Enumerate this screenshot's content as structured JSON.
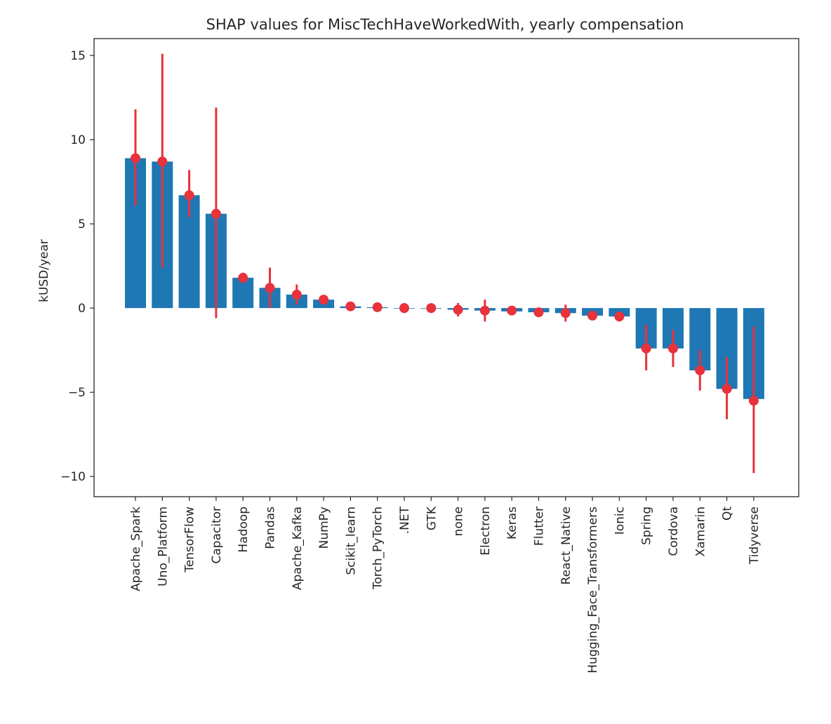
{
  "chart_data": {
    "type": "bar",
    "title": "SHAP values for MiscTechHaveWorkedWith, yearly compensation",
    "xlabel": "",
    "ylabel": "kUSD/year",
    "ylim": [
      -11.2,
      16.0
    ],
    "yticks": [
      15,
      10,
      5,
      0,
      -5,
      -10
    ],
    "ytick_labels": [
      "15",
      "10",
      "5",
      "0",
      "−5",
      "−10"
    ],
    "grid": false,
    "bar_color": "#1f77b4",
    "error_color": "#e8323c",
    "categories": [
      "Apache_Spark",
      "Uno_Platform",
      "TensorFlow",
      "Capacitor",
      "Hadoop",
      "Pandas",
      "Apache_Kafka",
      "NumPy",
      "Scikit_learn",
      "Torch_PyTorch",
      ".NET",
      "GTK",
      "none",
      "Electron",
      "Keras",
      "Flutter",
      "React_Native",
      "Hugging_Face_Transformers",
      "Ionic",
      "Spring",
      "Cordova",
      "Xamarin",
      "Qt",
      "Tidyverse"
    ],
    "values": [
      8.9,
      8.7,
      6.7,
      5.6,
      1.8,
      1.2,
      0.8,
      0.5,
      0.1,
      0.05,
      0.0,
      0.0,
      -0.1,
      -0.15,
      -0.2,
      -0.25,
      -0.3,
      -0.45,
      -0.5,
      -2.4,
      -2.4,
      -3.7,
      -4.8,
      -5.4
    ],
    "points": [
      8.9,
      8.7,
      6.7,
      5.6,
      1.8,
      1.2,
      0.8,
      0.5,
      0.1,
      0.05,
      0.0,
      0.0,
      -0.1,
      -0.15,
      -0.15,
      -0.25,
      -0.3,
      -0.45,
      -0.5,
      -2.4,
      -2.4,
      -3.7,
      -4.8,
      -5.5
    ],
    "error_low": [
      6.1,
      2.4,
      5.4,
      -0.6,
      1.5,
      0.0,
      0.2,
      0.4,
      0.05,
      0.0,
      -0.3,
      -0.1,
      -0.5,
      -0.8,
      -0.3,
      -0.4,
      -0.8,
      -0.6,
      -0.8,
      -3.7,
      -3.5,
      -4.9,
      -6.6,
      -9.8
    ],
    "error_high": [
      11.8,
      15.1,
      8.2,
      11.9,
      2.1,
      2.4,
      1.4,
      0.7,
      0.15,
      0.1,
      0.3,
      0.1,
      0.3,
      0.5,
      0.0,
      -0.1,
      0.2,
      -0.3,
      -0.2,
      -1.0,
      -1.3,
      -2.5,
      -2.9,
      -1.1
    ]
  }
}
